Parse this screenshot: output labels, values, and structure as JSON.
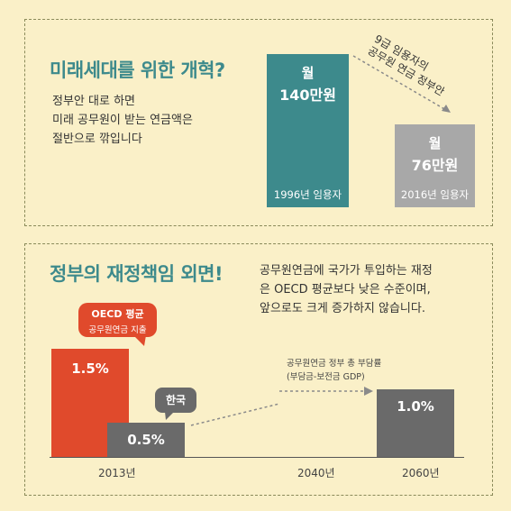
{
  "panel1": {
    "title": "미래세대를 위한 개혁?",
    "desc_lines": [
      "정부안 대로 하면",
      "미래 공무원이 받는 연금액은",
      "절반으로 깎입니다"
    ],
    "arrow_label_lines": [
      "9급 임용자의",
      "공무원 연금 정부안"
    ],
    "bar1": {
      "label_top": "월",
      "amount": "140만원",
      "caption": "1996년 임용자",
      "color": "#3d8a8c",
      "value_manwon": 140
    },
    "bar2": {
      "label_top": "월",
      "amount": "76만원",
      "caption": "2016년 임용자",
      "color": "#a8a8a8",
      "value_manwon": 76
    }
  },
  "panel2": {
    "title": "정부의 재정책임 외면!",
    "desc_lines": [
      "공무원연금에 국가가 투입하는 재정",
      "은 OECD 평균보다 낮은 수준이며,",
      "앞으로도 크게 증가하지 않습니다."
    ],
    "bubble_oecd": {
      "line1": "OECD 평균",
      "line2": "공무원연금 지출"
    },
    "bubble_korea": "한국",
    "bar_oecd": {
      "value": "1.5%",
      "color": "#e04a2c"
    },
    "bar_korea": {
      "value": "0.5%",
      "color": "#6a6a6a"
    },
    "bar_2060": {
      "value": "1.0%",
      "color": "#6a6a6a"
    },
    "arrow_label_lines": [
      "공무원연금 정부 총 부담률",
      "(부담금-보전금 GDP)"
    ],
    "years": [
      "2013년",
      "2040년",
      "2060년"
    ]
  },
  "colors": {
    "background": "#faf0c8",
    "teal": "#3d8a8c",
    "red": "#e04a2c",
    "darkgray": "#6a6a6a",
    "lightgray": "#a8a8a8"
  }
}
